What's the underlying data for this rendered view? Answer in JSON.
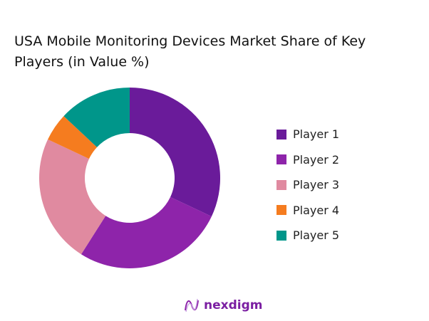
{
  "chart_data": {
    "type": "pie",
    "title": "USA Mobile Monitoring Devices Market Share of Key Players (in Value %)",
    "donut": true,
    "legend_position": "right",
    "categories": [
      "Player 1",
      "Player 2",
      "Player 3",
      "Player 4",
      "Player 5"
    ],
    "values": [
      32,
      27,
      23,
      5,
      13
    ],
    "colors": [
      "#6a1b9a",
      "#8e24aa",
      "#e08aa0",
      "#f57c1f",
      "#00968a"
    ]
  },
  "brand": {
    "name": "nexdigm"
  }
}
